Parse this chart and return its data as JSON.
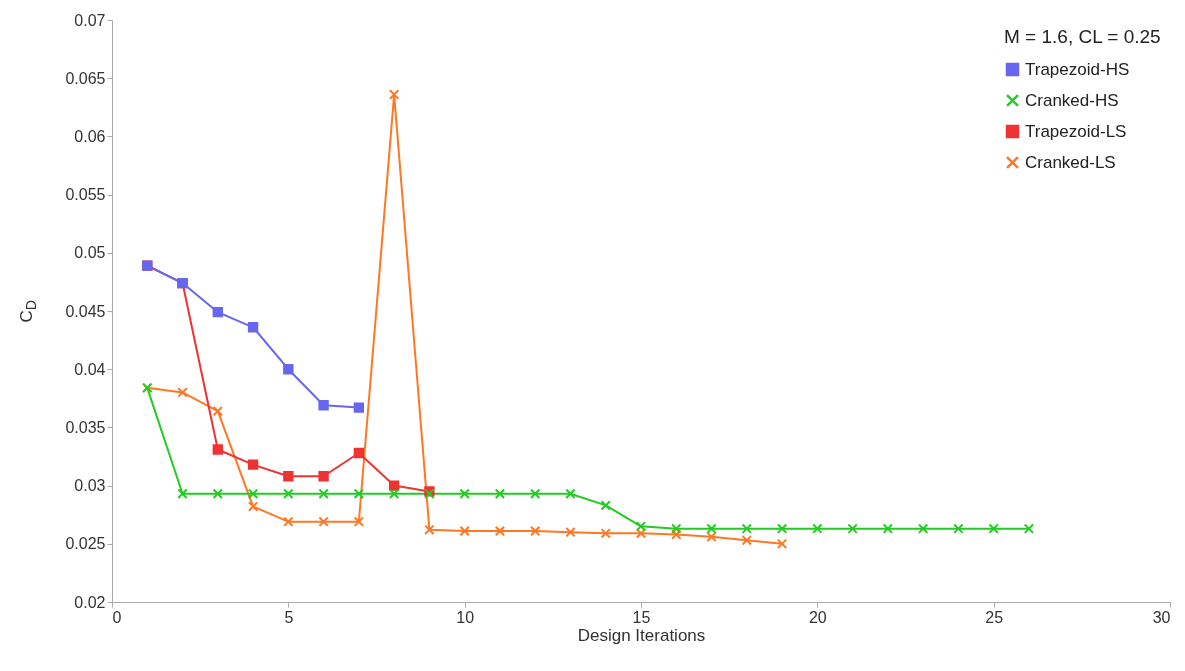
{
  "chart_data": {
    "type": "line",
    "xlabel": "Design Iterations",
    "ylabel": "C$_{D}$",
    "legend_title": "M = 1.6, CL = 0.25",
    "legend": "top right",
    "grid": false,
    "line_style": "solid",
    "xlim": [
      0,
      30
    ],
    "xticks": [
      0,
      5,
      10,
      15,
      20,
      25,
      30
    ],
    "ylim": [
      0.02,
      0.07
    ],
    "yticks": [
      0.02,
      0.025,
      0.03,
      0.035,
      0.04,
      0.045,
      0.05,
      0.055,
      0.06,
      0.065,
      0.07
    ],
    "series": [
      {
        "name": "Trapezoid-HS",
        "color": "#6666ee",
        "marker": "square",
        "x": [
          1,
          2,
          3,
          4,
          5,
          6,
          7
        ],
        "values": [
          0.0489,
          0.0474,
          0.0449,
          0.0436,
          0.04,
          0.0369,
          0.0367
        ]
      },
      {
        "name": "Cranked-HS",
        "color": "#22cc22",
        "marker": "cross",
        "x": [
          1,
          2,
          3,
          4,
          5,
          6,
          7,
          8,
          9,
          10,
          11,
          12,
          13,
          14,
          15,
          16,
          17,
          18,
          19,
          20,
          21,
          22,
          23,
          24,
          25,
          26
        ],
        "values": [
          0.0384,
          0.0293,
          0.0293,
          0.0293,
          0.0293,
          0.0293,
          0.0293,
          0.0293,
          0.0293,
          0.0293,
          0.0293,
          0.0293,
          0.0293,
          0.0283,
          0.0265,
          0.0263,
          0.0263,
          0.0263,
          0.0263,
          0.0263,
          0.0263,
          0.0263,
          0.0263,
          0.0263,
          0.0263,
          0.0263
        ]
      },
      {
        "name": "Trapezoid-LS",
        "color": "#ee3333",
        "marker": "square",
        "x": [
          1,
          2,
          3,
          4,
          5,
          6,
          7,
          8,
          9
        ],
        "values": [
          0.0489,
          0.0474,
          0.0331,
          0.0318,
          0.0308,
          0.0308,
          0.0328,
          0.03,
          0.0295
        ]
      },
      {
        "name": "Cranked-LS",
        "color": "#ff7722",
        "marker": "cross",
        "x": [
          1,
          2,
          3,
          4,
          5,
          6,
          7,
          8,
          9,
          10,
          11,
          12,
          13,
          14,
          15,
          16,
          17,
          18,
          19
        ],
        "values": [
          0.0384,
          0.038,
          0.0364,
          0.0282,
          0.0269,
          0.0269,
          0.0269,
          0.0636,
          0.0262,
          0.0261,
          0.0261,
          0.0261,
          0.026,
          0.0259,
          0.0259,
          0.0258,
          0.0256,
          0.0253,
          0.025
        ]
      }
    ]
  }
}
